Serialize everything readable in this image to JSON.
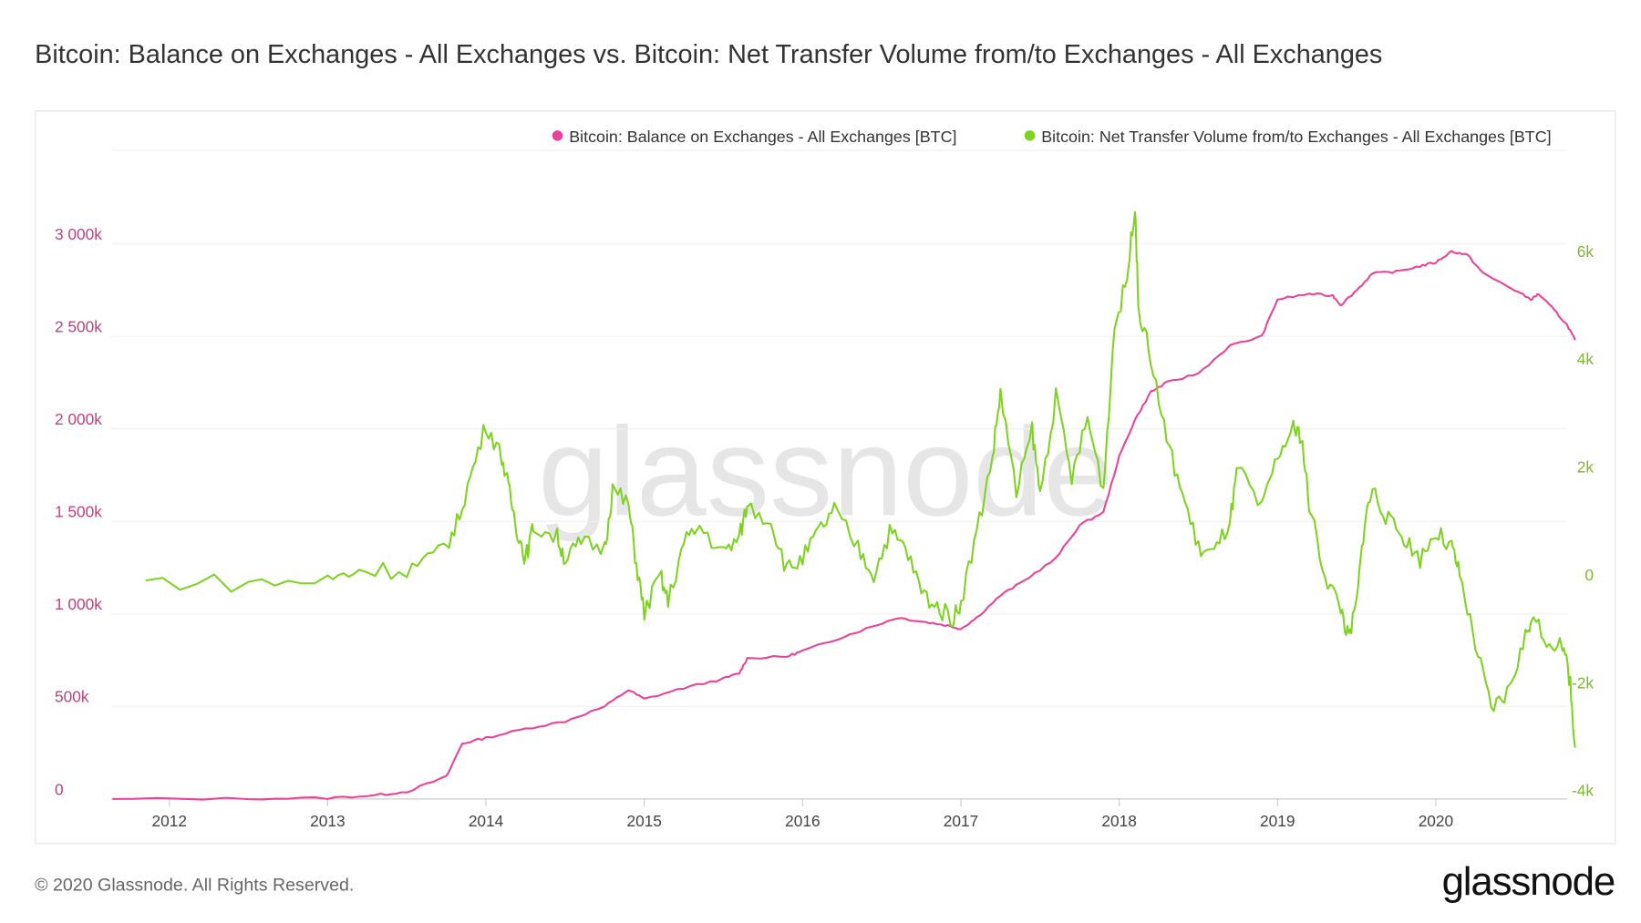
{
  "title": "Bitcoin: Balance on Exchanges - All Exchanges vs. Bitcoin: Net Transfer Volume from/to Exchanges - All Exchanges",
  "footer": "© 2020 Glassnode. All Rights Reserved.",
  "logo": "glassnode",
  "watermark": "glassnode",
  "chart_data": {
    "type": "line",
    "title": "Bitcoin: Balance on Exchanges - All Exchanges vs. Bitcoin: Net Transfer Volume from/to Exchanges - All Exchanges",
    "x_ticks": [
      "2012",
      "2013",
      "2014",
      "2015",
      "2016",
      "2017",
      "2018",
      "2019",
      "2020"
    ],
    "y_left": {
      "ticks": [
        "0",
        "500k",
        "1 000k",
        "1 500k",
        "2 000k",
        "2 500k",
        "3 000k"
      ],
      "values": [
        0,
        500,
        1000,
        1500,
        2000,
        2500,
        3000
      ],
      "unit": "k BTC",
      "color": "#c2407f"
    },
    "y_right": {
      "ticks": [
        "-4k",
        "-2k",
        "0",
        "2k",
        "4k",
        "6k"
      ],
      "values": [
        -4,
        -2,
        0,
        2,
        4,
        6
      ],
      "unit": "k BTC",
      "color": "#7cb82f"
    },
    "legend_position": "top-right",
    "series": [
      {
        "name": "Bitcoin: Balance on Exchanges - All Exchanges [BTC]",
        "color": "#e8439a",
        "axis": "left",
        "x": [
          2011.64,
          2012.5,
          2013.0,
          2013.3,
          2013.5,
          2013.75,
          2013.85,
          2014.0,
          2014.25,
          2014.5,
          2014.75,
          2014.9,
          2015.0,
          2015.25,
          2015.5,
          2015.6,
          2015.65,
          2015.9,
          2016.0,
          2016.2,
          2016.4,
          2016.6,
          2016.75,
          2016.9,
          2017.0,
          2017.1,
          2017.25,
          2017.4,
          2017.6,
          2017.75,
          2017.9,
          2018.0,
          2018.1,
          2018.2,
          2018.3,
          2018.5,
          2018.7,
          2018.9,
          2019.0,
          2019.2,
          2019.35,
          2019.4,
          2019.5,
          2019.6,
          2019.75,
          2019.9,
          2020.0,
          2020.1,
          2020.2,
          2020.3,
          2020.5,
          2020.6,
          2020.65,
          2020.75,
          2020.83,
          2020.88
        ],
        "y": [
          0,
          2,
          5,
          20,
          40,
          120,
          300,
          330,
          380,
          420,
          500,
          590,
          540,
          600,
          650,
          680,
          760,
          770,
          800,
          860,
          920,
          980,
          960,
          940,
          920,
          980,
          1100,
          1180,
          1300,
          1480,
          1550,
          1850,
          2050,
          2200,
          2250,
          2300,
          2450,
          2500,
          2700,
          2730,
          2720,
          2670,
          2750,
          2840,
          2850,
          2880,
          2900,
          2960,
          2940,
          2840,
          2750,
          2700,
          2730,
          2640,
          2560,
          2480
        ]
      },
      {
        "name": "Bitcoin: Net Transfer Volume from/to Exchanges - All Exchanges [BTC]",
        "color": "#7ed321",
        "axis": "right",
        "x": [
          2011.85,
          2012.5,
          2013.0,
          2013.2,
          2013.5,
          2013.7,
          2013.8,
          2013.9,
          2014.0,
          2014.1,
          2014.15,
          2014.2,
          2014.25,
          2014.3,
          2014.45,
          2014.5,
          2014.6,
          2014.75,
          2014.8,
          2014.9,
          2014.95,
          2015.0,
          2015.1,
          2015.15,
          2015.25,
          2015.35,
          2015.5,
          2015.6,
          2015.65,
          2015.8,
          2015.9,
          2016.0,
          2016.1,
          2016.2,
          2016.35,
          2016.45,
          2016.55,
          2016.65,
          2016.75,
          2016.85,
          2016.95,
          2017.0,
          2017.1,
          2017.2,
          2017.25,
          2017.35,
          2017.45,
          2017.5,
          2017.6,
          2017.7,
          2017.8,
          2017.9,
          2017.97,
          2018.05,
          2018.1,
          2018.12,
          2018.2,
          2018.3,
          2018.4,
          2018.5,
          2018.6,
          2018.7,
          2018.75,
          2018.9,
          2019.0,
          2019.1,
          2019.15,
          2019.2,
          2019.3,
          2019.4,
          2019.45,
          2019.5,
          2019.55,
          2019.6,
          2019.7,
          2019.8,
          2019.9,
          2020.0,
          2020.1,
          2020.15,
          2020.25,
          2020.35,
          2020.45,
          2020.55,
          2020.6,
          2020.7,
          2020.8,
          2020.85,
          2020.88
        ],
        "y": [
          -0.1,
          -0.15,
          -0.1,
          0.1,
          0.1,
          0.4,
          0.8,
          1.8,
          2.8,
          2.2,
          1.5,
          0.8,
          0.3,
          0.9,
          0.7,
          0.3,
          0.6,
          0.5,
          1.6,
          1.3,
          0.2,
          -0.7,
          0.0,
          -0.5,
          0.6,
          0.9,
          0.4,
          0.7,
          1.3,
          1.0,
          0.1,
          0.3,
          0.8,
          1.2,
          0.5,
          0.0,
          0.8,
          0.5,
          -0.3,
          -0.6,
          -0.8,
          -0.5,
          0.8,
          2.2,
          3.4,
          1.5,
          2.7,
          1.5,
          3.3,
          1.8,
          2.9,
          1.6,
          4.6,
          5.5,
          6.9,
          5.0,
          4.0,
          2.5,
          1.5,
          0.5,
          0.4,
          1.0,
          2.0,
          1.2,
          2.2,
          2.7,
          2.6,
          1.3,
          0.0,
          -0.6,
          -1.2,
          -0.5,
          1.0,
          1.6,
          1.0,
          0.7,
          0.3,
          0.8,
          0.5,
          0.0,
          -1.3,
          -2.5,
          -2.2,
          -1.3,
          -0.8,
          -1.2,
          -1.3,
          -2.0,
          -3.2
        ]
      }
    ]
  }
}
